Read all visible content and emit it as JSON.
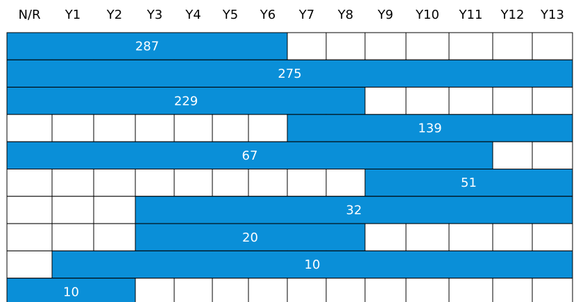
{
  "columns": [
    "N/R",
    "Y1",
    "Y2",
    "Y3",
    "Y4",
    "Y5",
    "Y6",
    "Y7",
    "Y8",
    "Y9",
    "Y10",
    "Y11",
    "Y12",
    "Y13"
  ],
  "bar_color": "#0a8fd8",
  "rows": [
    {
      "value": 287,
      "from": "N/R",
      "to": "Y6"
    },
    {
      "value": 275,
      "from": "N/R",
      "to": "Y13"
    },
    {
      "value": 229,
      "from": "N/R",
      "to": "Y8"
    },
    {
      "value": 139,
      "from": "Y7",
      "to": "Y13"
    },
    {
      "value": 67,
      "from": "N/R",
      "to": "Y11"
    },
    {
      "value": 51,
      "from": "Y9",
      "to": "Y13"
    },
    {
      "value": 32,
      "from": "Y3",
      "to": "Y13"
    },
    {
      "value": 20,
      "from": "Y3",
      "to": "Y8"
    },
    {
      "value": 10,
      "from": "Y1",
      "to": "Y13"
    },
    {
      "value": 10,
      "from": "N/R",
      "to": "Y2"
    }
  ]
}
